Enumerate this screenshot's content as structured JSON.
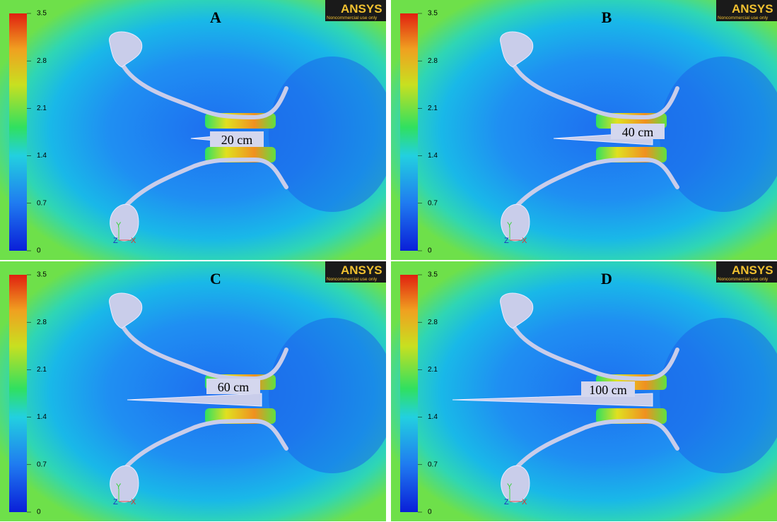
{
  "panels": [
    {
      "label": "A",
      "length_label": "20 cm"
    },
    {
      "label": "B",
      "length_label": "40 cm"
    },
    {
      "label": "C",
      "length_label": "60 cm"
    },
    {
      "label": "D",
      "length_label": "100 cm"
    }
  ],
  "colorbar_ticks": [
    0,
    0.7,
    1.4,
    2.1,
    2.8,
    3.5
  ],
  "logo": {
    "brand": "ANSYS",
    "note": "Noncommercial use only"
  },
  "triad": {
    "y": "Y",
    "z": "Z",
    "x": "X"
  }
}
